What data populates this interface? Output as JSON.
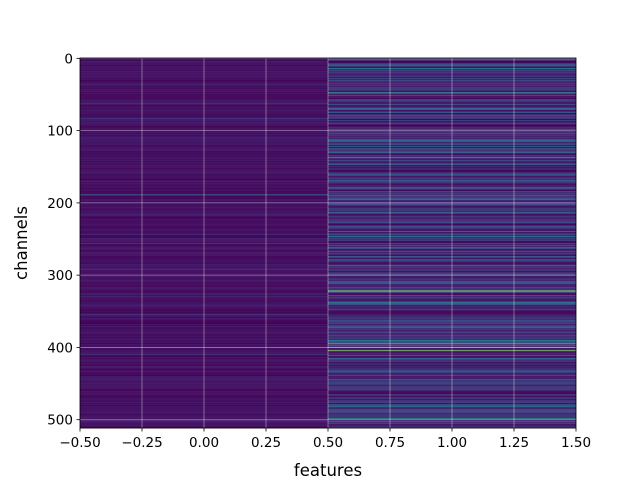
{
  "chart_data": {
    "type": "heatmap",
    "title": "",
    "xlabel": "features",
    "ylabel": "channels",
    "xlim": [
      -0.5,
      1.5
    ],
    "ylim": [
      511.5,
      -0.5
    ],
    "grid": true,
    "colormap": "viridis",
    "x": [
      0,
      1
    ],
    "n_rows": 512,
    "xticks": [
      -0.5,
      -0.25,
      0.0,
      0.25,
      0.5,
      0.75,
      1.0,
      1.25,
      1.5
    ],
    "xtick_labels": [
      "−0.50",
      "−0.25",
      "0.00",
      "0.25",
      "0.50",
      "0.75",
      "1.00",
      "1.25",
      "1.50"
    ],
    "yticks": [
      0,
      100,
      200,
      300,
      400,
      500
    ],
    "ytick_labels": [
      "0",
      "100",
      "200",
      "300",
      "400",
      "500"
    ],
    "column_0_row_levels": {
      "baseline": 0.06,
      "highlights": [
        {
          "row": 189,
          "value": 0.42
        },
        {
          "row": 83,
          "value": 0.22
        },
        {
          "row": 62,
          "value": 0.2
        },
        {
          "row": 256,
          "value": 0.2
        },
        {
          "row": 330,
          "value": 0.2
        },
        {
          "row": 355,
          "value": 0.24
        },
        {
          "row": 410,
          "value": 0.18
        }
      ]
    },
    "column_1_row_levels": {
      "baseline": 0.14,
      "highlights": [
        {
          "row": 48,
          "value": 0.7
        },
        {
          "row": 14,
          "value": 0.45
        },
        {
          "row": 30,
          "value": 0.3
        },
        {
          "row": 75,
          "value": 0.28
        },
        {
          "row": 98,
          "value": 0.3
        },
        {
          "row": 110,
          "value": 0.32
        },
        {
          "row": 122,
          "value": 0.38
        },
        {
          "row": 130,
          "value": 0.45
        },
        {
          "row": 137,
          "value": 0.55
        },
        {
          "row": 160,
          "value": 0.3
        },
        {
          "row": 170,
          "value": 0.35
        },
        {
          "row": 184,
          "value": 0.3
        },
        {
          "row": 195,
          "value": 0.5
        },
        {
          "row": 210,
          "value": 0.3
        },
        {
          "row": 226,
          "value": 0.3
        },
        {
          "row": 240,
          "value": 0.35
        },
        {
          "row": 250,
          "value": 0.45
        },
        {
          "row": 262,
          "value": 0.3
        },
        {
          "row": 280,
          "value": 0.35
        },
        {
          "row": 298,
          "value": 0.3
        },
        {
          "row": 322,
          "value": 0.92
        },
        {
          "row": 340,
          "value": 0.35
        },
        {
          "row": 358,
          "value": 0.3
        },
        {
          "row": 372,
          "value": 0.35
        },
        {
          "row": 380,
          "value": 0.3
        },
        {
          "row": 390,
          "value": 0.5
        },
        {
          "row": 395,
          "value": 0.82
        },
        {
          "row": 400,
          "value": 0.5
        },
        {
          "row": 404,
          "value": 0.8
        },
        {
          "row": 415,
          "value": 0.35
        },
        {
          "row": 430,
          "value": 0.3
        },
        {
          "row": 445,
          "value": 0.35
        },
        {
          "row": 455,
          "value": 0.45
        },
        {
          "row": 470,
          "value": 0.3
        },
        {
          "row": 480,
          "value": 0.35
        },
        {
          "row": 498,
          "value": 0.55
        }
      ]
    }
  }
}
